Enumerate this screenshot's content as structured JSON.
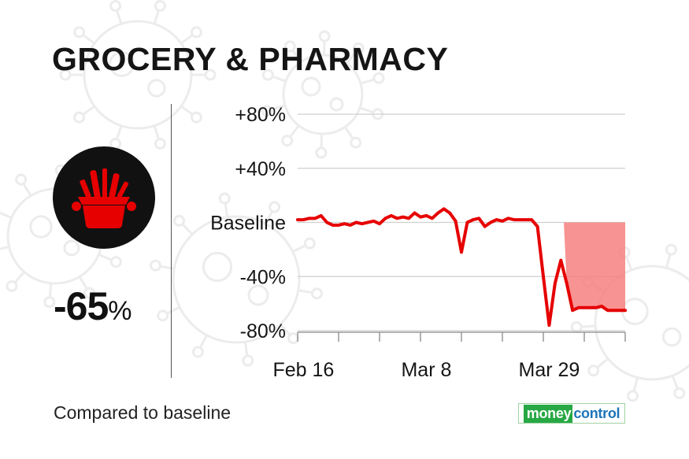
{
  "title": "GROCERY & PHARMACY",
  "icon": "grocery-basket-icon",
  "headline": {
    "value": "-65",
    "unit": "%"
  },
  "footnote": "Compared to baseline",
  "logo": {
    "part1": "money",
    "part2": "control"
  },
  "colors": {
    "line": "#e60000",
    "fill": "#f78080",
    "icon_bg": "#111111",
    "icon_fg": "#e60000",
    "grid": "#cfcfcf",
    "logo_green": "#27a844",
    "logo_blue": "#1b74b9"
  },
  "chart_data": {
    "type": "area",
    "title": "GROCERY & PHARMACY",
    "xlabel": "",
    "ylabel": "",
    "ylim": [
      -80,
      80
    ],
    "grid": true,
    "y_ticks": [
      80,
      40,
      0,
      -40,
      -80
    ],
    "y_tick_labels": [
      "+80%",
      "+40%",
      "Baseline",
      "-40%",
      "-80%"
    ],
    "x_range": [
      "2020-02-15",
      "2020-04-11"
    ],
    "x_tick_labels": [
      {
        "date": "2020-02-16",
        "label": "Feb 16"
      },
      {
        "date": "2020-03-08",
        "label": "Mar 8"
      },
      {
        "date": "2020-03-29",
        "label": "Mar 29"
      }
    ],
    "series": [
      {
        "shaded_below_baseline_from": "2020-04-01",
        "x": [
          "2020-02-15",
          "2020-02-16",
          "2020-02-17",
          "2020-02-18",
          "2020-02-19",
          "2020-02-20",
          "2020-02-21",
          "2020-02-22",
          "2020-02-23",
          "2020-02-24",
          "2020-02-25",
          "2020-02-26",
          "2020-02-27",
          "2020-02-28",
          "2020-02-29",
          "2020-03-01",
          "2020-03-02",
          "2020-03-03",
          "2020-03-04",
          "2020-03-05",
          "2020-03-06",
          "2020-03-07",
          "2020-03-08",
          "2020-03-09",
          "2020-03-10",
          "2020-03-11",
          "2020-03-12",
          "2020-03-13",
          "2020-03-14",
          "2020-03-15",
          "2020-03-16",
          "2020-03-17",
          "2020-03-18",
          "2020-03-19",
          "2020-03-20",
          "2020-03-21",
          "2020-03-22",
          "2020-03-23",
          "2020-03-24",
          "2020-03-25",
          "2020-03-26",
          "2020-03-27",
          "2020-03-28",
          "2020-03-29",
          "2020-03-30",
          "2020-03-31",
          "2020-04-01",
          "2020-04-02",
          "2020-04-03",
          "2020-04-04",
          "2020-04-05",
          "2020-04-06",
          "2020-04-07",
          "2020-04-08",
          "2020-04-09",
          "2020-04-10",
          "2020-04-11"
        ],
        "values": [
          2,
          2,
          3,
          3,
          5,
          0,
          -2,
          -2,
          -1,
          -2,
          0,
          -1,
          0,
          1,
          -1,
          3,
          5,
          3,
          4,
          3,
          7,
          4,
          5,
          3,
          7,
          10,
          7,
          1,
          -22,
          0,
          2,
          3,
          -3,
          0,
          2,
          1,
          3,
          2,
          2,
          2,
          2,
          -3,
          -40,
          -76,
          -45,
          -28,
          -45,
          -65,
          -63,
          -63,
          -63,
          -63,
          -62,
          -65,
          -65,
          -65,
          -65
        ]
      }
    ]
  }
}
